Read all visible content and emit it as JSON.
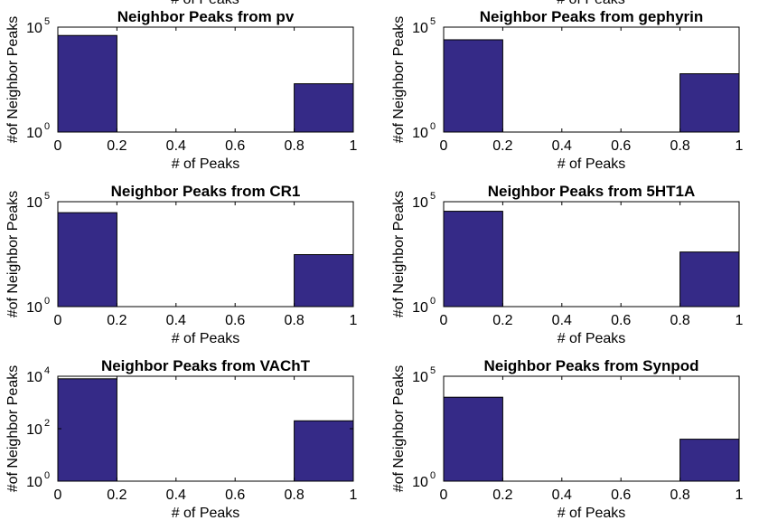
{
  "clipped_top_label": "# of Peaks",
  "chart_data": [
    {
      "type": "bar",
      "title": "Neighbor Peaks from pv",
      "xlabel": "# of Peaks",
      "ylabel": "#of Neighbor Peaks",
      "yscale": "log",
      "xlim": [
        0,
        1
      ],
      "ylim": [
        1,
        100000
      ],
      "xticks": [
        "0",
        "0.2",
        "0.4",
        "0.6",
        "0.8",
        "1"
      ],
      "yticks": [
        {
          "value": 1,
          "base": "10",
          "exp": "0"
        },
        {
          "value": 100000,
          "base": "10",
          "exp": "5"
        }
      ],
      "bins": [
        {
          "x0": 0,
          "x1": 0.2,
          "value": 40000
        },
        {
          "x0": 0.8,
          "x1": 1,
          "value": 200
        }
      ]
    },
    {
      "type": "bar",
      "title": "Neighbor Peaks from gephyrin",
      "xlabel": "# of Peaks",
      "ylabel": "#of Neighbor Peaks",
      "yscale": "log",
      "xlim": [
        0,
        1
      ],
      "ylim": [
        1,
        100000
      ],
      "xticks": [
        "0",
        "0.2",
        "0.4",
        "0.6",
        "0.8",
        "1"
      ],
      "yticks": [
        {
          "value": 1,
          "base": "10",
          "exp": "0"
        },
        {
          "value": 100000,
          "base": "10",
          "exp": "5"
        }
      ],
      "bins": [
        {
          "x0": 0,
          "x1": 0.2,
          "value": 25000
        },
        {
          "x0": 0.8,
          "x1": 1,
          "value": 600
        }
      ]
    },
    {
      "type": "bar",
      "title": "Neighbor Peaks from CR1",
      "xlabel": "# of Peaks",
      "ylabel": "#of Neighbor Peaks",
      "yscale": "log",
      "xlim": [
        0,
        1
      ],
      "ylim": [
        1,
        100000
      ],
      "xticks": [
        "0",
        "0.2",
        "0.4",
        "0.6",
        "0.8",
        "1"
      ],
      "yticks": [
        {
          "value": 1,
          "base": "10",
          "exp": "0"
        },
        {
          "value": 100000,
          "base": "10",
          "exp": "5"
        }
      ],
      "bins": [
        {
          "x0": 0,
          "x1": 0.2,
          "value": 30000
        },
        {
          "x0": 0.8,
          "x1": 1,
          "value": 300
        }
      ]
    },
    {
      "type": "bar",
      "title": "Neighbor Peaks from 5HT1A",
      "xlabel": "# of Peaks",
      "ylabel": "#of Neighbor Peaks",
      "yscale": "log",
      "xlim": [
        0,
        1
      ],
      "ylim": [
        1,
        100000
      ],
      "xticks": [
        "0",
        "0.2",
        "0.4",
        "0.6",
        "0.8",
        "1"
      ],
      "yticks": [
        {
          "value": 1,
          "base": "10",
          "exp": "0"
        },
        {
          "value": 100000,
          "base": "10",
          "exp": "5"
        }
      ],
      "bins": [
        {
          "x0": 0,
          "x1": 0.2,
          "value": 35000
        },
        {
          "x0": 0.8,
          "x1": 1,
          "value": 400
        }
      ]
    },
    {
      "type": "bar",
      "title": "Neighbor Peaks from VAChT",
      "xlabel": "# of Peaks",
      "ylabel": "#of Neighbor Peaks",
      "yscale": "log",
      "xlim": [
        0,
        1
      ],
      "ylim": [
        1,
        10000
      ],
      "xticks": [
        "0",
        "0.2",
        "0.4",
        "0.6",
        "0.8",
        "1"
      ],
      "yticks": [
        {
          "value": 1,
          "base": "10",
          "exp": "0"
        },
        {
          "value": 100,
          "base": "10",
          "exp": "2"
        },
        {
          "value": 10000,
          "base": "10",
          "exp": "4"
        }
      ],
      "bins": [
        {
          "x0": 0,
          "x1": 0.2,
          "value": 8000
        },
        {
          "x0": 0.8,
          "x1": 1,
          "value": 200
        }
      ]
    },
    {
      "type": "bar",
      "title": "Neighbor Peaks from Synpod",
      "xlabel": "# of Peaks",
      "ylabel": "#of Neighbor Peaks",
      "yscale": "log",
      "xlim": [
        0,
        1
      ],
      "ylim": [
        1,
        100000
      ],
      "xticks": [
        "0",
        "0.2",
        "0.4",
        "0.6",
        "0.8",
        "1"
      ],
      "yticks": [
        {
          "value": 1,
          "base": "10",
          "exp": "0"
        },
        {
          "value": 100000,
          "base": "10",
          "exp": "5"
        }
      ],
      "bins": [
        {
          "x0": 0,
          "x1": 0.2,
          "value": 10000
        },
        {
          "x0": 0.8,
          "x1": 1,
          "value": 100
        }
      ]
    }
  ],
  "colors": {
    "bar_fill": "#352a87",
    "bar_edge": "#000000",
    "axes": "#000000"
  }
}
